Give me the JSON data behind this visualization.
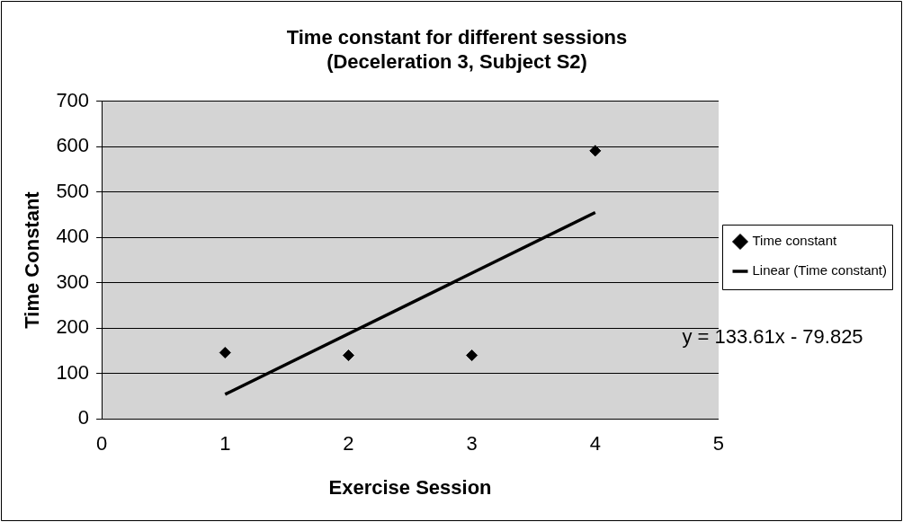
{
  "chart_data": {
    "type": "scatter",
    "title": "Time constant for different sessions\n(Deceleration 3, Subject S2)",
    "xlabel": "Exercise Session",
    "ylabel": "Time Constant",
    "x": [
      1,
      2,
      3,
      4
    ],
    "series": [
      {
        "name": "Time constant",
        "type": "scatter",
        "color": "#000000",
        "values": [
          146,
          140,
          140,
          591
        ]
      },
      {
        "name": "Linear (Time constant)",
        "type": "line",
        "marker": "none",
        "color": "#000000",
        "x": [
          1,
          4
        ],
        "values": [
          54,
          455
        ]
      }
    ],
    "xlim": [
      0,
      5
    ],
    "xticks": [
      0,
      1,
      2,
      3,
      4,
      5
    ],
    "ylim": [
      0,
      700
    ],
    "yticks": [
      0,
      100,
      200,
      300,
      400,
      500,
      600,
      700
    ],
    "grid": "y",
    "legend": "right",
    "marker": "diamond",
    "line_style": "solid",
    "annotations": [
      "y = 133.61x - 79.825"
    ]
  }
}
